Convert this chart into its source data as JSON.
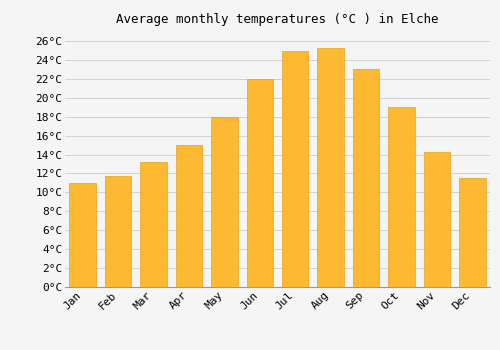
{
  "title": "Average monthly temperatures (°C ) in Elche",
  "months": [
    "Jan",
    "Feb",
    "Mar",
    "Apr",
    "May",
    "Jun",
    "Jul",
    "Aug",
    "Sep",
    "Oct",
    "Nov",
    "Dec"
  ],
  "temperatures": [
    11.0,
    11.7,
    13.2,
    15.0,
    18.0,
    22.0,
    24.9,
    25.3,
    23.0,
    19.0,
    14.3,
    11.5
  ],
  "bar_color": "#FDB931",
  "bar_edge_color": "#E8A020",
  "background_color": "#F5F5F5",
  "grid_color": "#D0D0D0",
  "title_fontsize": 9,
  "tick_label_fontsize": 8,
  "ylim": [
    0,
    27
  ],
  "ytick_step": 2,
  "font_family": "monospace"
}
